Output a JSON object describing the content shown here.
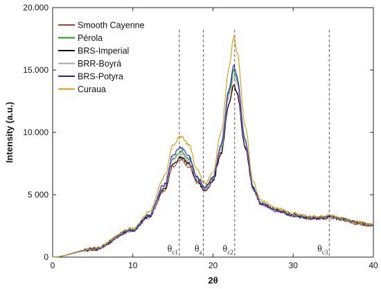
{
  "chart_data": {
    "type": "line",
    "xlabel": "2θ",
    "ylabel": "Intensity (a.u.)",
    "xlim": [
      0,
      40
    ],
    "ylim": [
      0,
      20000
    ],
    "x_ticks": [
      0,
      10,
      20,
      30,
      40
    ],
    "y_ticks": [
      {
        "value": 0,
        "label": "0"
      },
      {
        "value": 5000,
        "label": "5 000"
      },
      {
        "value": 10000,
        "label": "10.000"
      },
      {
        "value": 15000,
        "label": "15.000"
      },
      {
        "value": 20000,
        "label": "20.000"
      }
    ],
    "grid": false,
    "legend_position": "top-left",
    "series": [
      {
        "name": "Smooth Cayenne",
        "color": "#c0392b",
        "x": [
          0,
          5,
          10,
          12,
          14,
          15,
          16,
          17,
          18,
          19,
          20,
          21,
          22,
          22.6,
          23,
          24,
          25,
          26,
          28,
          30,
          32,
          34,
          34.5,
          36,
          38,
          40
        ],
        "y": [
          0,
          600,
          2100,
          3200,
          5400,
          7300,
          7800,
          7300,
          6000,
          5400,
          6200,
          8400,
          12300,
          13900,
          13200,
          8800,
          5400,
          4200,
          3700,
          3300,
          3100,
          3100,
          3200,
          3000,
          2700,
          2500
        ]
      },
      {
        "name": "Pérola",
        "color": "#1a9a1a",
        "x": [
          0,
          5,
          10,
          12,
          14,
          15,
          16,
          17,
          18,
          19,
          20,
          21,
          22,
          22.6,
          23,
          24,
          25,
          26,
          28,
          30,
          32,
          34,
          34.5,
          36,
          38,
          40
        ],
        "y": [
          0,
          600,
          2150,
          3300,
          5700,
          7900,
          8500,
          7900,
          6300,
          5600,
          6400,
          8900,
          13200,
          15000,
          14200,
          9300,
          5600,
          4300,
          3750,
          3350,
          3150,
          3150,
          3250,
          3050,
          2750,
          2550
        ]
      },
      {
        "name": "BRS-Imperial",
        "color": "#000000",
        "x": [
          0,
          5,
          10,
          12,
          14,
          15,
          16,
          17,
          18,
          19,
          20,
          21,
          22,
          22.6,
          23,
          24,
          25,
          26,
          28,
          30,
          32,
          34,
          34.5,
          36,
          38,
          40
        ],
        "y": [
          0,
          650,
          2200,
          3300,
          5500,
          7500,
          8000,
          7500,
          6100,
          5300,
          6100,
          8300,
          12200,
          13800,
          13100,
          8800,
          5500,
          4300,
          3800,
          3400,
          3200,
          3150,
          3250,
          3050,
          2750,
          2550
        ]
      },
      {
        "name": "BRR-Boyrá",
        "color": "#a6a6a6",
        "x": [
          0,
          5,
          10,
          12,
          14,
          15,
          16,
          17,
          18,
          19,
          20,
          21,
          22,
          22.6,
          23,
          24,
          25,
          26,
          28,
          30,
          32,
          34,
          34.5,
          36,
          38,
          40
        ],
        "y": [
          0,
          620,
          2150,
          3300,
          5650,
          7800,
          8300,
          7700,
          6200,
          5500,
          6300,
          8700,
          12900,
          14500,
          13800,
          9100,
          5500,
          4250,
          3750,
          3350,
          3150,
          3150,
          3250,
          3050,
          2750,
          2550
        ]
      },
      {
        "name": "BRS-Potyra",
        "color": "#1f1fd8",
        "x": [
          0,
          5,
          10,
          12,
          14,
          15,
          16,
          17,
          18,
          19,
          20,
          21,
          22,
          22.6,
          23,
          24,
          25,
          26,
          28,
          30,
          32,
          34,
          34.5,
          36,
          38,
          40
        ],
        "y": [
          0,
          600,
          2150,
          3350,
          5900,
          8200,
          8800,
          8100,
          6400,
          5600,
          6400,
          9000,
          13400,
          15300,
          14400,
          9400,
          5600,
          4300,
          3750,
          3350,
          3150,
          3150,
          3250,
          3050,
          2750,
          2550
        ]
      },
      {
        "name": "Curaua",
        "color": "#d49a00",
        "x": [
          0,
          5,
          10,
          12,
          14,
          15,
          16,
          17,
          18,
          19,
          20,
          21,
          22,
          22.6,
          23,
          24,
          25,
          26,
          28,
          30,
          32,
          34,
          34.5,
          36,
          38,
          40
        ],
        "y": [
          0,
          650,
          2300,
          3600,
          6500,
          9000,
          9700,
          9000,
          7000,
          5900,
          6800,
          10000,
          15200,
          17700,
          16500,
          10500,
          6000,
          4500,
          3900,
          3500,
          3250,
          3250,
          3350,
          3100,
          2800,
          2600
        ]
      }
    ],
    "annotations": [
      {
        "symbol": "θ",
        "sub": "c1",
        "x": 15.8
      },
      {
        "symbol": "θ",
        "sub": "a",
        "x": 18.8
      },
      {
        "symbol": "θ",
        "sub": "c2",
        "x": 22.7
      },
      {
        "symbol": "θ",
        "sub": "c3",
        "x": 34.5
      }
    ]
  }
}
